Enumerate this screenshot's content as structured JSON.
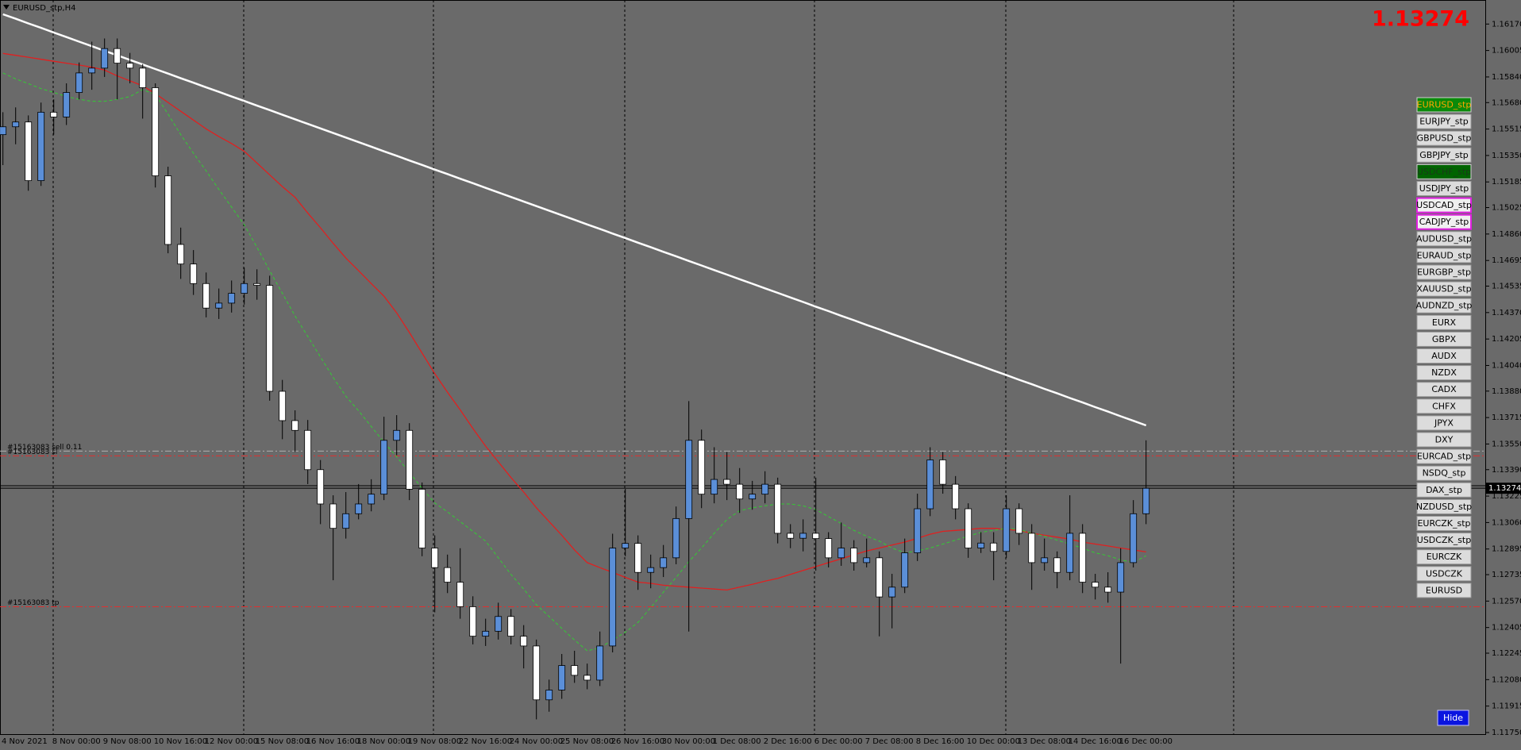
{
  "window_title": "EURUSD_stp,H4",
  "hide_button": "Hide",
  "symbols": [
    {
      "label": "EURUSD_stp",
      "style": "active"
    },
    {
      "label": "EURJPY_stp",
      "style": "normal"
    },
    {
      "label": "GBPUSD_stp",
      "style": "normal"
    },
    {
      "label": "GBPJPY_stp",
      "style": "normal"
    },
    {
      "label": "USDCHF_stp",
      "style": "selected"
    },
    {
      "label": "USDJPY_stp",
      "style": "normal"
    },
    {
      "label": "USDCAD_stp",
      "style": "marked"
    },
    {
      "label": "CADJPY_stp",
      "style": "marked"
    },
    {
      "label": "AUDUSD_stp",
      "style": "normal"
    },
    {
      "label": "EURAUD_stp",
      "style": "normal"
    },
    {
      "label": "EURGBP_stp",
      "style": "normal"
    },
    {
      "label": "XAUUSD_stp",
      "style": "normal"
    },
    {
      "label": "AUDNZD_stp",
      "style": "normal"
    },
    {
      "label": "EURX",
      "style": "normal"
    },
    {
      "label": "GBPX",
      "style": "normal"
    },
    {
      "label": "AUDX",
      "style": "normal"
    },
    {
      "label": "NZDX",
      "style": "normal"
    },
    {
      "label": "CADX",
      "style": "normal"
    },
    {
      "label": "CHFX",
      "style": "normal"
    },
    {
      "label": "JPYX",
      "style": "normal"
    },
    {
      "label": "DXY",
      "style": "normal"
    },
    {
      "label": "EURCAD_stp",
      "style": "normal"
    },
    {
      "label": "NSDQ_stp",
      "style": "normal"
    },
    {
      "label": "DAX_stp",
      "style": "normal"
    },
    {
      "label": "NZDUSD_stp",
      "style": "normal"
    },
    {
      "label": "EURCZK_stp",
      "style": "normal"
    },
    {
      "label": "USDCZK_stp",
      "style": "normal"
    },
    {
      "label": "EURCZK",
      "style": "normal"
    },
    {
      "label": "USDCZK",
      "style": "normal"
    },
    {
      "label": "EURUSD",
      "style": "normal"
    }
  ],
  "chart_data": {
    "type": "candlestick",
    "up_color": "#5b8fd8",
    "down_color": "#ffffff",
    "wick_color": "#000000",
    "current_price": 1.13274,
    "current_price_color": "#ff0000",
    "ask": 1.1329,
    "ylim": [
      1.1174,
      1.1632
    ],
    "yticks": [
      {
        "value": 1.1617,
        "label": "1.16170"
      },
      1.16005,
      {
        "value": 1.1584,
        "label": "1.15840"
      },
      {
        "value": 1.1568,
        "label": "1.15680"
      },
      1.15515,
      {
        "value": 1.1535,
        "label": "1.15350"
      },
      1.15185,
      1.15025,
      {
        "value": 1.1486,
        "label": "1.14860"
      },
      1.14695,
      1.14535,
      {
        "value": 1.1437,
        "label": "1.14370"
      },
      1.14205,
      {
        "value": 1.1404,
        "label": "1.14040"
      },
      {
        "value": 1.1388,
        "label": "1.13880"
      },
      1.13715,
      {
        "value": 1.1355,
        "label": "1.13550"
      },
      {
        "value": 1.1339,
        "label": "1.13390"
      },
      1.13225,
      {
        "value": 1.1306,
        "label": "1.13060"
      },
      1.12895,
      1.12735,
      {
        "value": 1.1257,
        "label": "1.12570"
      },
      1.12405,
      1.12245,
      {
        "value": 1.1208,
        "label": "1.12080"
      },
      1.11915,
      {
        "value": 1.1175,
        "label": "1.11750"
      }
    ],
    "grid": false,
    "categories": [
      "4 Nov 2021",
      null,
      null,
      null,
      "8 Nov 00:00",
      null,
      null,
      null,
      "9 Nov 08:00",
      null,
      null,
      null,
      "10 Nov 16:00",
      null,
      null,
      null,
      "12 Nov 00:00",
      null,
      null,
      null,
      "15 Nov 08:00",
      null,
      null,
      null,
      "16 Nov 16:00",
      null,
      null,
      null,
      "18 Nov 00:00",
      null,
      null,
      null,
      "19 Nov 08:00",
      null,
      null,
      null,
      "22 Nov 16:00",
      null,
      null,
      null,
      "24 Nov 00:00",
      null,
      null,
      null,
      "25 Nov 08:00",
      null,
      null,
      null,
      "26 Nov 16:00",
      null,
      null,
      null,
      "30 Nov 00:00",
      null,
      null,
      null,
      "1 Dec 08:00",
      null,
      null,
      null,
      "2 Dec 16:00",
      null,
      null,
      null,
      "6 Dec 00:00",
      null,
      null,
      null,
      "7 Dec 08:00",
      null,
      null,
      null,
      "8 Dec 16:00",
      null,
      null,
      null,
      "10 Dec 00:00",
      null,
      null,
      null,
      "13 Dec 08:00",
      null,
      null,
      null,
      "14 Dec 16:00",
      null,
      null,
      null,
      "16 Dec 00:00",
      null,
      null
    ],
    "open": [
      1.1548,
      1.15529,
      1.15559,
      1.15193,
      1.1562,
      1.1559,
      1.15743,
      1.15865,
      1.15895,
      1.16017,
      1.15926,
      1.15895,
      1.15773,
      1.15223,
      1.14795,
      1.14673,
      1.14551,
      1.14398,
      1.14429,
      1.1449,
      1.14551,
      1.1454,
      1.13879,
      1.13696,
      1.13635,
      1.1339,
      1.13176,
      1.13024,
      1.13115,
      1.13176,
      1.13237,
      1.13573,
      1.13635,
      1.13268,
      1.12901,
      1.12779,
      1.12688,
      1.12535,
      1.12351,
      1.12382,
      1.12474,
      1.12351,
      1.1229,
      1.11954,
      1.12015,
      1.12168,
      1.12107,
      1.12077,
      1.1229,
      1.12901,
      1.1293,
      1.12749,
      1.12779,
      1.1284,
      1.13085,
      1.13573,
      1.13237,
      1.13329,
      1.13299,
      1.13207,
      1.13237,
      1.13299,
      1.12993,
      1.12962,
      1.12993,
      1.1296,
      1.1284,
      1.12901,
      1.1281,
      1.1284,
      1.12596,
      1.12657,
      1.12871,
      1.13146,
      1.13451,
      1.13299,
      1.13146,
      1.12901,
      1.12932,
      1.1288,
      1.13146,
      1.12993,
      1.1281,
      1.1284,
      1.12749,
      1.12993,
      1.12688,
      1.12657,
      1.12626,
      1.1281,
      1.13115
    ],
    "high": [
      1.1562,
      1.1565,
      1.156,
      1.1568,
      1.157,
      1.158,
      1.1593,
      1.1606,
      1.1608,
      1.1608,
      1.1599,
      1.1592,
      1.158,
      1.1528,
      1.149,
      1.1476,
      1.1462,
      1.1452,
      1.1457,
      1.1465,
      1.1464,
      1.146,
      1.1395,
      1.1376,
      1.137,
      1.1345,
      1.1323,
      1.1325,
      1.133,
      1.1333,
      1.1372,
      1.1373,
      1.1368,
      1.1331,
      1.1298,
      1.1286,
      1.129,
      1.126,
      1.1246,
      1.1256,
      1.1252,
      1.1242,
      1.1233,
      1.1208,
      1.1224,
      1.1226,
      1.1218,
      1.1238,
      1.1299,
      1.1327,
      1.1298,
      1.1286,
      1.1292,
      1.1316,
      1.13818,
      1.1364,
      1.1353,
      1.135,
      1.134,
      1.1332,
      1.1338,
      1.1334,
      1.1305,
      1.1308,
      1.1334,
      1.13,
      1.1306,
      1.1295,
      1.1296,
      1.1288,
      1.1274,
      1.1296,
      1.1324,
      1.1353,
      1.135,
      1.1335,
      1.1318,
      1.13,
      1.13,
      1.1323,
      1.1318,
      1.1305,
      1.1296,
      1.1288,
      1.1323,
      1.1305,
      1.1274,
      1.1275,
      1.129,
      1.132,
      1.13573
    ],
    "low": [
      1.1529,
      1.1542,
      1.1513,
      1.1516,
      1.1548,
      1.1554,
      1.157,
      1.1576,
      1.1584,
      1.157,
      1.158,
      1.1558,
      1.1515,
      1.1474,
      1.1458,
      1.1448,
      1.1434,
      1.1433,
      1.1437,
      1.1442,
      1.1445,
      1.1382,
      1.1358,
      1.135,
      1.133,
      1.1305,
      1.127,
      1.1296,
      1.1308,
      1.1313,
      1.132,
      1.1348,
      1.132,
      1.1285,
      1.125,
      1.1262,
      1.1246,
      1.123,
      1.1229,
      1.1233,
      1.123,
      1.1215,
      1.11832,
      1.1188,
      1.1196,
      1.1206,
      1.1202,
      1.1204,
      1.1225,
      1.1285,
      1.1264,
      1.1265,
      1.1272,
      1.128,
      1.1238,
      1.1315,
      1.1318,
      1.132,
      1.1312,
      1.1314,
      1.1318,
      1.1293,
      1.129,
      1.1288,
      1.1276,
      1.1278,
      1.1279,
      1.1276,
      1.1278,
      1.1235,
      1.124,
      1.1262,
      1.1282,
      1.131,
      1.1324,
      1.1308,
      1.1284,
      1.1287,
      1.127,
      1.1284,
      1.1292,
      1.1264,
      1.1276,
      1.1265,
      1.127,
      1.1262,
      1.1258,
      1.1256,
      1.1218,
      1.1278,
      1.1305
    ],
    "close": [
      1.15529,
      1.15559,
      1.15193,
      1.1562,
      1.1559,
      1.15743,
      1.15865,
      1.15895,
      1.16017,
      1.15926,
      1.15895,
      1.15773,
      1.15223,
      1.14795,
      1.14673,
      1.14551,
      1.14398,
      1.14429,
      1.1449,
      1.14551,
      1.1454,
      1.13879,
      1.13696,
      1.13635,
      1.1339,
      1.13176,
      1.13024,
      1.13115,
      1.13176,
      1.13237,
      1.13573,
      1.13635,
      1.13268,
      1.12901,
      1.12779,
      1.12688,
      1.12535,
      1.12351,
      1.12382,
      1.12474,
      1.12351,
      1.1229,
      1.11954,
      1.12015,
      1.12168,
      1.12107,
      1.12077,
      1.1229,
      1.12901,
      1.1293,
      1.12749,
      1.12779,
      1.1284,
      1.13085,
      1.13573,
      1.13237,
      1.13329,
      1.13299,
      1.13207,
      1.13237,
      1.13299,
      1.12993,
      1.12962,
      1.12993,
      1.1296,
      1.1284,
      1.12901,
      1.1281,
      1.1284,
      1.12596,
      1.12657,
      1.12871,
      1.13146,
      1.13451,
      1.13299,
      1.13146,
      1.12901,
      1.12932,
      1.1288,
      1.13146,
      1.12993,
      1.1281,
      1.1284,
      1.12749,
      1.12993,
      1.12688,
      1.12657,
      1.12626,
      1.1281,
      1.13115,
      1.13274
    ],
    "overlays": [
      {
        "color": "#ffffff",
        "style": "solid",
        "width": 2.5,
        "values": [
          1.16231,
          1.16203,
          1.16174,
          1.16146,
          1.16117,
          1.16089,
          1.1606,
          1.16032,
          1.16003,
          1.15975,
          1.15946,
          1.15918,
          1.15889,
          1.15861,
          1.15832,
          1.15804,
          1.15775,
          1.15747,
          1.15718,
          1.1569,
          1.15661,
          1.15633,
          1.15604,
          1.15576,
          1.15547,
          1.15519,
          1.1549,
          1.15462,
          1.15433,
          1.15405,
          1.15376,
          1.15348,
          1.15319,
          1.15291,
          1.15262,
          1.15234,
          1.15205,
          1.15177,
          1.15148,
          1.1512,
          1.15091,
          1.15063,
          1.15034,
          1.15006,
          1.14977,
          1.14949,
          1.1492,
          1.14892,
          1.14863,
          1.14835,
          1.14806,
          1.14778,
          1.14749,
          1.14721,
          1.14692,
          1.14664,
          1.14635,
          1.14607,
          1.14578,
          1.1455,
          1.14521,
          1.14493,
          1.14464,
          1.14436,
          1.14407,
          1.14379,
          1.1435,
          1.14322,
          1.14293,
          1.14265,
          1.14236,
          1.14208,
          1.14179,
          1.14151,
          1.14122,
          1.14094,
          1.14065,
          1.14037,
          1.14008,
          1.1398,
          1.13951,
          1.13923,
          1.13894,
          1.13866,
          1.13837,
          1.13809,
          1.1378,
          1.13752,
          1.13723,
          1.13695,
          1.13666
        ]
      },
      {
        "color": "#e02020",
        "style": "solid",
        "width": 1.3,
        "values": [
          1.15987,
          1.15975,
          1.15963,
          1.1595,
          1.15938,
          1.15926,
          1.15914,
          1.15901,
          1.15883,
          1.15846,
          1.15816,
          1.15785,
          1.15736,
          1.15681,
          1.15626,
          1.15571,
          1.15516,
          1.15468,
          1.15425,
          1.15376,
          1.15303,
          1.15229,
          1.15156,
          1.15089,
          1.14991,
          1.14899,
          1.14802,
          1.1471,
          1.14631,
          1.14551,
          1.14472,
          1.14368,
          1.14246,
          1.14117,
          1.13989,
          1.13873,
          1.13763,
          1.13647,
          1.13537,
          1.13439,
          1.13341,
          1.1325,
          1.13152,
          1.13066,
          1.12981,
          1.12889,
          1.1281,
          1.12779,
          1.12749,
          1.12718,
          1.12688,
          1.12681,
          1.12669,
          1.12663,
          1.12657,
          1.12651,
          1.12645,
          1.12639,
          1.12657,
          1.12675,
          1.12694,
          1.12712,
          1.12736,
          1.12761,
          1.12785,
          1.1281,
          1.12834,
          1.12859,
          1.12883,
          1.12901,
          1.1292,
          1.12938,
          1.12962,
          1.12987,
          1.13005,
          1.13011,
          1.13017,
          1.13024,
          1.13024,
          1.13017,
          1.13011,
          1.12993,
          1.12981,
          1.12969,
          1.12956,
          1.12938,
          1.12926,
          1.12914,
          1.12901,
          1.12889,
          1.12877
        ]
      },
      {
        "color": "#33cc33",
        "style": "dashed",
        "width": 1,
        "values": [
          1.15865,
          1.15828,
          1.15798,
          1.15767,
          1.15743,
          1.15718,
          1.157,
          1.15688,
          1.15688,
          1.157,
          1.15718,
          1.15761,
          1.1573,
          1.15608,
          1.1548,
          1.15364,
          1.15254,
          1.15138,
          1.15028,
          1.14918,
          1.14777,
          1.14631,
          1.1449,
          1.14349,
          1.14221,
          1.14093,
          1.13965,
          1.13848,
          1.13757,
          1.13659,
          1.13561,
          1.1347,
          1.13372,
          1.13274,
          1.13182,
          1.13127,
          1.13066,
          1.13005,
          1.12944,
          1.1284,
          1.12736,
          1.12645,
          1.12547,
          1.12474,
          1.124,
          1.12327,
          1.1226,
          1.12278,
          1.12327,
          1.12376,
          1.12437,
          1.12529,
          1.12626,
          1.12718,
          1.12816,
          1.12901,
          1.12993,
          1.13079,
          1.13134,
          1.13152,
          1.13164,
          1.13176,
          1.13176,
          1.13164,
          1.1314,
          1.13097,
          1.13054,
          1.13011,
          1.12975,
          1.12944,
          1.12901,
          1.12871,
          1.12883,
          1.12901,
          1.12926,
          1.1295,
          1.12975,
          1.12999,
          1.13011,
          1.13024,
          1.13017,
          1.12993,
          1.12975,
          1.1295,
          1.12926,
          1.12901,
          1.12871,
          1.12853,
          1.12828,
          1.1281,
          1.12853
        ]
      }
    ],
    "levels": [
      {
        "value": 1.13506,
        "label": "#15163083 sell 0.11",
        "color": "#b0b0b0",
        "style": "dashdot"
      },
      {
        "value": 1.13476,
        "label": "#15163083 sl",
        "color": "#e03030",
        "style": "dashdot"
      },
      {
        "value": 1.12535,
        "label": "#15163083 tp",
        "color": "#e03030",
        "style": "dashdot"
      }
    ]
  }
}
